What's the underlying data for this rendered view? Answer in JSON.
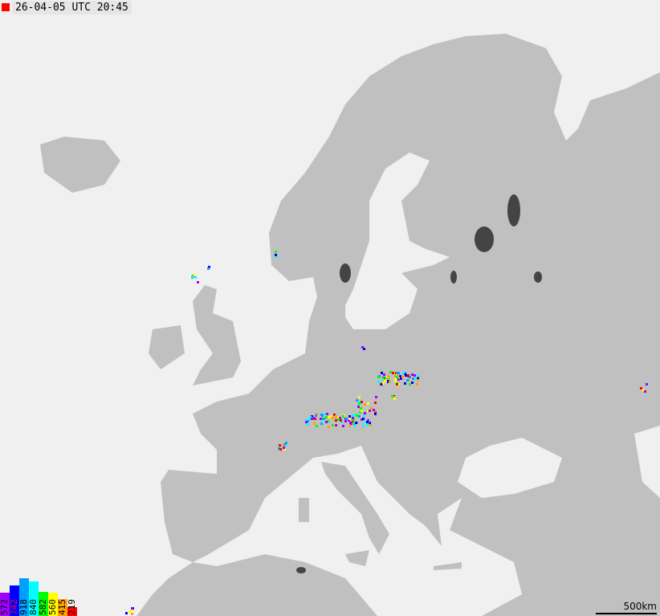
{
  "header": {
    "timestamp": "26-04-05 UTC 20:45",
    "indicator_color": "#ff0000"
  },
  "colors": {
    "sea": "#f0f0f0",
    "land": "#c0c0c0",
    "lake": "#444444"
  },
  "legend": [
    {
      "count": "572",
      "color": "#a000ff",
      "text_color": "#000000",
      "value": 572
    },
    {
      "count": "742",
      "color": "#0000ff",
      "text_color": "#ff0000",
      "value": 742
    },
    {
      "count": "918",
      "color": "#00a0ff",
      "text_color": "#000000",
      "value": 918
    },
    {
      "count": "840",
      "color": "#00ffff",
      "text_color": "#000000",
      "value": 840
    },
    {
      "count": "582",
      "color": "#00ff00",
      "text_color": "#000000",
      "value": 582
    },
    {
      "count": "560",
      "color": "#ffff00",
      "text_color": "#000000",
      "value": 560
    },
    {
      "count": "415",
      "color": "#ffa000",
      "text_color": "#000000",
      "value": 415
    },
    {
      "count": "219",
      "color": "#ff0000",
      "text_color": "#000000",
      "value": 219
    }
  ],
  "scale": {
    "label": "500km"
  }
}
